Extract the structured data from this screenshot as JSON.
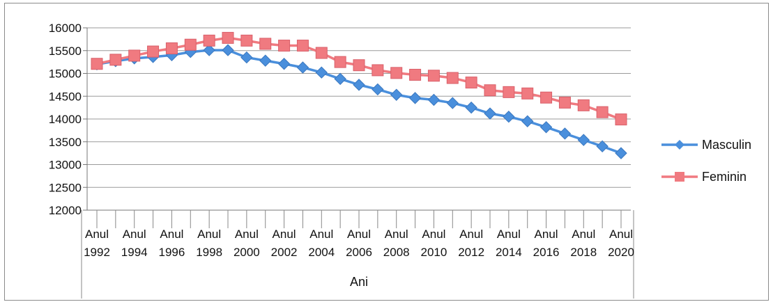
{
  "chart_data": {
    "type": "line",
    "title": "",
    "xlabel": "Ani",
    "ylabel": "",
    "ylim": [
      12000,
      16000
    ],
    "y_ticks": [
      12000,
      12500,
      13000,
      13500,
      14000,
      14500,
      15000,
      15500,
      16000
    ],
    "grid": "horizontal",
    "legend_position": "right",
    "x": [
      1992,
      1993,
      1994,
      1995,
      1996,
      1997,
      1998,
      1999,
      2000,
      2001,
      2002,
      2003,
      2004,
      2005,
      2006,
      2007,
      2008,
      2009,
      2010,
      2011,
      2012,
      2013,
      2014,
      2015,
      2016,
      2017,
      2018,
      2019,
      2020
    ],
    "x_tick_labels": [
      {
        "year": 1992,
        "line1": "Anul",
        "line2": "1992"
      },
      {
        "year": 1994,
        "line1": "Anul",
        "line2": "1994"
      },
      {
        "year": 1996,
        "line1": "Anul",
        "line2": "1996"
      },
      {
        "year": 1998,
        "line1": "Anul",
        "line2": "1998"
      },
      {
        "year": 2000,
        "line1": "Anul",
        "line2": "2000"
      },
      {
        "year": 2002,
        "line1": "Anul",
        "line2": "2002"
      },
      {
        "year": 2004,
        "line1": "Anul",
        "line2": "2004"
      },
      {
        "year": 2006,
        "line1": "Anul",
        "line2": "2006"
      },
      {
        "year": 2008,
        "line1": "Anul",
        "line2": "2008"
      },
      {
        "year": 2010,
        "line1": "Anul",
        "line2": "2010"
      },
      {
        "year": 2012,
        "line1": "Anul",
        "line2": "2012"
      },
      {
        "year": 2014,
        "line1": "Anul",
        "line2": "2014"
      },
      {
        "year": 2016,
        "line1": "Anul",
        "line2": "2016"
      },
      {
        "year": 2018,
        "line1": "Anul",
        "line2": "2018"
      },
      {
        "year": 2020,
        "line1": "Anul",
        "line2": "2020"
      }
    ],
    "series": [
      {
        "name": "Masculin",
        "color": "#4a8fdc",
        "marker": "diamond",
        "values": [
          15200,
          15270,
          15330,
          15360,
          15400,
          15470,
          15510,
          15510,
          15350,
          15280,
          15210,
          15130,
          15020,
          14880,
          14750,
          14650,
          14530,
          14460,
          14420,
          14350,
          14250,
          14120,
          14050,
          13950,
          13820,
          13680,
          13540,
          13400,
          13250
        ]
      },
      {
        "name": "Feminin",
        "color": "#f07a80",
        "marker": "square",
        "values": [
          15210,
          15300,
          15390,
          15480,
          15550,
          15630,
          15720,
          15780,
          15720,
          15650,
          15610,
          15610,
          15450,
          15250,
          15180,
          15070,
          15010,
          14970,
          14950,
          14900,
          14800,
          14630,
          14590,
          14560,
          14470,
          14360,
          14300,
          14150,
          13990
        ]
      }
    ]
  }
}
